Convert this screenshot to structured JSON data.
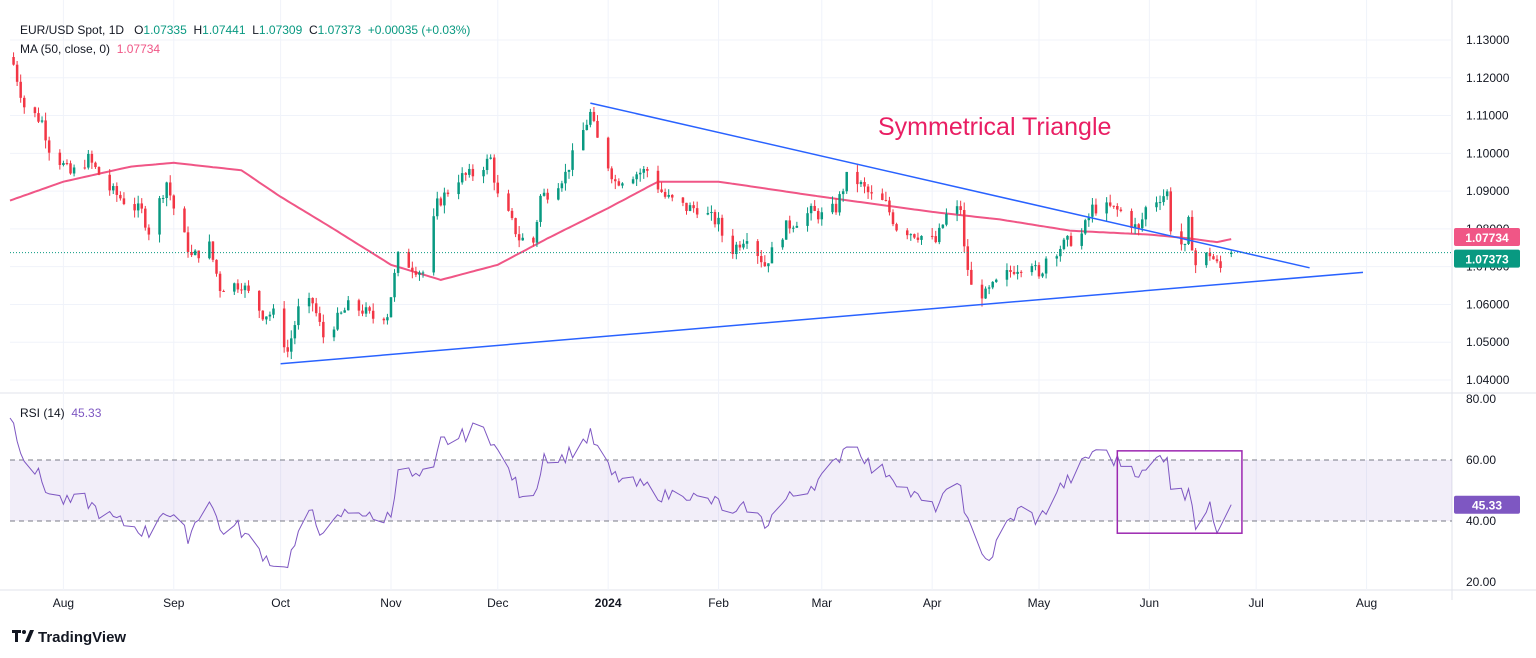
{
  "legend": {
    "symbol": "EUR/USD Spot, 1D",
    "open_label": "O",
    "open": "1.07335",
    "high_label": "H",
    "high": "1.07441",
    "low_label": "L",
    "low": "1.07309",
    "close_label": "C",
    "close": "1.07373",
    "change": "+0.00035 (+0.03%)",
    "ma_name": "MA (50, close, 0)",
    "ma_value": "1.07734",
    "rsi_name": "RSI (14)",
    "rsi_value": "45.33"
  },
  "annotation": "Symmetrical Triangle",
  "brand": "TradingView",
  "colors": {
    "up": "#089981",
    "down": "#f23645",
    "ma": "#f05686",
    "trendline": "#2962ff",
    "rsi": "#7e57c2",
    "rsi_band": "#7e57c2",
    "box": "#9c27b0",
    "price_badge": "#089981",
    "ma_badge": "#f05686"
  },
  "chart_data": [
    {
      "type": "candlestick",
      "title": "EUR/USD Spot, 1D",
      "y_ticks": [
        "1.13000",
        "1.12000",
        "1.11000",
        "1.10000",
        "1.09000",
        "1.08000",
        "1.07000",
        "1.06000",
        "1.05000",
        "1.04000"
      ],
      "ylim": [
        1.037,
        1.135
      ],
      "x_ticks": [
        "Aug",
        "Sep",
        "Oct",
        "Nov",
        "Dec",
        "2024",
        "Feb",
        "Mar",
        "Apr",
        "May",
        "Jun",
        "Jul",
        "Aug"
      ],
      "x_tick_dates": [
        "2023-08-01",
        "2023-09-01",
        "2023-10-01",
        "2023-11-01",
        "2023-12-01",
        "2024-01-01",
        "2024-02-01",
        "2024-03-01",
        "2024-04-01",
        "2024-05-01",
        "2024-06-01",
        "2024-07-01",
        "2024-08-01"
      ],
      "xlim": [
        "2023-07-17",
        "2024-08-25"
      ],
      "current_price": 1.07373,
      "ma_last": 1.07734,
      "close_anchors": [
        [
          "2023-07-18",
          1.1235
        ],
        [
          "2023-07-21",
          1.1125
        ],
        [
          "2023-07-26",
          1.1085
        ],
        [
          "2023-07-28",
          1.1015
        ],
        [
          "2023-08-03",
          1.0945
        ],
        [
          "2023-08-08",
          1.0985
        ],
        [
          "2023-08-14",
          1.0905
        ],
        [
          "2023-08-18",
          1.0875
        ],
        [
          "2023-08-23",
          1.0845
        ],
        [
          "2023-08-25",
          1.0795
        ],
        [
          "2023-08-30",
          1.0925
        ],
        [
          "2023-09-01",
          1.0855
        ],
        [
          "2023-09-06",
          1.0725
        ],
        [
          "2023-09-11",
          1.0755
        ],
        [
          "2023-09-14",
          1.0645
        ],
        [
          "2023-09-20",
          1.0655
        ],
        [
          "2023-09-26",
          1.0575
        ],
        [
          "2023-09-29",
          1.0575
        ],
        [
          "2023-10-03",
          1.0475
        ],
        [
          "2023-10-06",
          1.0585
        ],
        [
          "2023-10-10",
          1.0605
        ],
        [
          "2023-10-13",
          1.0515
        ],
        [
          "2023-10-20",
          1.0595
        ],
        [
          "2023-10-24",
          1.0585
        ],
        [
          "2023-10-27",
          1.0565
        ],
        [
          "2023-10-31",
          1.0575
        ],
        [
          "2023-11-03",
          1.0725
        ],
        [
          "2023-11-08",
          1.0695
        ],
        [
          "2023-11-10",
          1.0685
        ],
        [
          "2023-11-14",
          1.0865
        ],
        [
          "2023-11-20",
          1.0935
        ],
        [
          "2023-11-24",
          1.0945
        ],
        [
          "2023-11-29",
          1.0985
        ],
        [
          "2023-12-01",
          1.0885
        ],
        [
          "2023-12-04",
          1.0835
        ],
        [
          "2023-12-07",
          1.0775
        ],
        [
          "2023-12-11",
          1.0765
        ],
        [
          "2023-12-13",
          1.0885
        ],
        [
          "2023-12-15",
          1.0895
        ],
        [
          "2023-12-20",
          1.0945
        ],
        [
          "2023-12-27",
          1.1105
        ],
        [
          "2023-12-29",
          1.1035
        ],
        [
          "2024-01-03",
          1.0925
        ],
        [
          "2024-01-08",
          1.0945
        ],
        [
          "2024-01-12",
          1.0955
        ],
        [
          "2024-01-17",
          1.0885
        ],
        [
          "2024-01-23",
          1.0855
        ],
        [
          "2024-01-26",
          1.0855
        ],
        [
          "2024-02-01",
          1.0815
        ],
        [
          "2024-02-02",
          1.0785
        ],
        [
          "2024-02-05",
          1.0745
        ],
        [
          "2024-02-09",
          1.0785
        ],
        [
          "2024-02-14",
          1.0705
        ],
        [
          "2024-02-20",
          1.0805
        ],
        [
          "2024-02-27",
          1.0845
        ],
        [
          "2024-03-01",
          1.0835
        ],
        [
          "2024-03-05",
          1.0855
        ],
        [
          "2024-03-08",
          1.0935
        ],
        [
          "2024-03-11",
          1.0925
        ],
        [
          "2024-03-15",
          1.0885
        ],
        [
          "2024-03-19",
          1.0865
        ],
        [
          "2024-03-22",
          1.0805
        ],
        [
          "2024-03-28",
          1.0785
        ],
        [
          "2024-04-02",
          1.0765
        ],
        [
          "2024-04-05",
          1.0835
        ],
        [
          "2024-04-09",
          1.0855
        ],
        [
          "2024-04-10",
          1.0745
        ],
        [
          "2024-04-12",
          1.0645
        ],
        [
          "2024-04-16",
          1.0625
        ],
        [
          "2024-04-19",
          1.0655
        ],
        [
          "2024-04-24",
          1.0695
        ],
        [
          "2024-04-29",
          1.0715
        ],
        [
          "2024-05-01",
          1.0665
        ],
        [
          "2024-05-03",
          1.0725
        ],
        [
          "2024-05-09",
          1.0765
        ],
        [
          "2024-05-13",
          1.0785
        ],
        [
          "2024-05-16",
          1.0855
        ],
        [
          "2024-05-21",
          1.0855
        ],
        [
          "2024-05-24",
          1.0845
        ],
        [
          "2024-05-29",
          1.0795
        ],
        [
          "2024-05-31",
          1.0855
        ],
        [
          "2024-06-04",
          1.0885
        ],
        [
          "2024-06-06",
          1.0895
        ],
        [
          "2024-06-07",
          1.0805
        ],
        [
          "2024-06-11",
          1.0745
        ],
        [
          "2024-06-12",
          1.0815
        ],
        [
          "2024-06-14",
          1.0705
        ],
        [
          "2024-06-18",
          1.0735
        ],
        [
          "2024-06-20",
          1.0705
        ],
        [
          "2024-06-21",
          1.0695
        ],
        [
          "2024-06-24",
          1.0737
        ]
      ],
      "ma_curve": [
        [
          "2023-07-17",
          1.0875
        ],
        [
          "2023-08-01",
          1.0925
        ],
        [
          "2023-08-20",
          1.0965
        ],
        [
          "2023-09-01",
          1.0975
        ],
        [
          "2023-09-20",
          1.0955
        ],
        [
          "2023-10-01",
          1.0885
        ],
        [
          "2023-10-15",
          1.0805
        ],
        [
          "2023-11-01",
          1.0705
        ],
        [
          "2023-11-15",
          1.0665
        ],
        [
          "2023-12-01",
          1.0705
        ],
        [
          "2023-12-15",
          1.0775
        ],
        [
          "2024-01-01",
          1.0855
        ],
        [
          "2024-01-15",
          1.0925
        ],
        [
          "2024-02-01",
          1.0925
        ],
        [
          "2024-03-01",
          1.0885
        ],
        [
          "2024-04-01",
          1.0845
        ],
        [
          "2024-04-20",
          1.0825
        ],
        [
          "2024-05-10",
          1.0795
        ],
        [
          "2024-06-01",
          1.0785
        ],
        [
          "2024-06-12",
          1.0775
        ],
        [
          "2024-06-20",
          1.0765
        ],
        [
          "2024-06-24",
          1.0773
        ]
      ],
      "trendlines": [
        {
          "from": [
            "2023-12-27",
            1.1133
          ],
          "to": [
            "2024-07-16",
            1.0697
          ]
        },
        {
          "from": [
            "2023-10-01",
            1.0443
          ],
          "to": [
            "2024-07-31",
            1.0685
          ]
        }
      ]
    },
    {
      "type": "line",
      "title": "RSI (14)",
      "y_ticks": [
        "80.00",
        "60.00",
        "40.00",
        "20.00"
      ],
      "ylim": [
        19,
        80
      ],
      "band": [
        40,
        60
      ],
      "last": 45.33,
      "series": [
        {
          "values_by_date": [
            [
              "2023-07-17",
              75
            ],
            [
              "2023-07-21",
              61
            ],
            [
              "2023-07-25",
              55
            ],
            [
              "2023-07-28",
              49
            ],
            [
              "2023-08-02",
              46
            ],
            [
              "2023-08-07",
              47
            ],
            [
              "2023-08-11",
              43
            ],
            [
              "2023-08-16",
              40
            ],
            [
              "2023-08-21",
              38
            ],
            [
              "2023-08-25",
              36
            ],
            [
              "2023-08-29",
              44
            ],
            [
              "2023-09-01",
              40
            ],
            [
              "2023-09-05",
              35
            ],
            [
              "2023-09-11",
              48
            ],
            [
              "2023-09-14",
              37
            ],
            [
              "2023-09-19",
              38
            ],
            [
              "2023-09-22",
              34
            ],
            [
              "2023-09-27",
              28
            ],
            [
              "2023-10-02",
              24
            ],
            [
              "2023-10-05",
              32
            ],
            [
              "2023-10-10",
              44
            ],
            [
              "2023-10-13",
              34
            ],
            [
              "2023-10-18",
              42
            ],
            [
              "2023-10-23",
              44
            ],
            [
              "2023-10-27",
              40
            ],
            [
              "2023-11-01",
              42
            ],
            [
              "2023-11-03",
              58
            ],
            [
              "2023-11-08",
              54
            ],
            [
              "2023-11-13",
              56
            ],
            [
              "2023-11-15",
              66
            ],
            [
              "2023-11-20",
              67
            ],
            [
              "2023-11-24",
              70
            ],
            [
              "2023-11-28",
              70
            ],
            [
              "2023-12-01",
              62
            ],
            [
              "2023-12-05",
              55
            ],
            [
              "2023-12-08",
              46
            ],
            [
              "2023-12-12",
              52
            ],
            [
              "2023-12-14",
              62
            ],
            [
              "2023-12-18",
              60
            ],
            [
              "2023-12-22",
              63
            ],
            [
              "2023-12-27",
              68
            ],
            [
              "2024-01-02",
              55
            ],
            [
              "2024-01-08",
              52
            ],
            [
              "2024-01-12",
              51
            ],
            [
              "2024-01-17",
              48
            ],
            [
              "2024-01-22",
              50
            ],
            [
              "2024-01-26",
              47
            ],
            [
              "2024-02-01",
              46
            ],
            [
              "2024-02-05",
              41
            ],
            [
              "2024-02-09",
              45
            ],
            [
              "2024-02-14",
              39
            ],
            [
              "2024-02-20",
              47
            ],
            [
              "2024-02-26",
              51
            ],
            [
              "2024-03-01",
              54
            ],
            [
              "2024-03-05",
              59
            ],
            [
              "2024-03-08",
              66
            ],
            [
              "2024-03-12",
              63
            ],
            [
              "2024-03-15",
              57
            ],
            [
              "2024-03-20",
              56
            ],
            [
              "2024-03-26",
              49
            ],
            [
              "2024-04-01",
              44
            ],
            [
              "2024-04-05",
              48
            ],
            [
              "2024-04-09",
              54
            ],
            [
              "2024-04-10",
              41
            ],
            [
              "2024-04-15",
              31
            ],
            [
              "2024-04-17",
              27
            ],
            [
              "2024-04-22",
              39
            ],
            [
              "2024-04-26",
              44
            ],
            [
              "2024-05-01",
              40
            ],
            [
              "2024-05-06",
              50
            ],
            [
              "2024-05-10",
              54
            ],
            [
              "2024-05-15",
              61
            ],
            [
              "2024-05-17",
              64
            ],
            [
              "2024-05-22",
              60
            ],
            [
              "2024-05-27",
              58
            ],
            [
              "2024-05-30",
              55
            ],
            [
              "2024-06-04",
              61
            ],
            [
              "2024-06-06",
              62
            ],
            [
              "2024-06-07",
              52
            ],
            [
              "2024-06-11",
              48
            ],
            [
              "2024-06-12",
              53
            ],
            [
              "2024-06-14",
              39
            ],
            [
              "2024-06-18",
              44
            ],
            [
              "2024-06-20",
              38
            ],
            [
              "2024-06-21",
              40
            ],
            [
              "2024-06-24",
              45.33
            ]
          ]
        }
      ],
      "highlight_box": {
        "from": [
          "2024-05-23",
          63
        ],
        "to": [
          "2024-06-27",
          36
        ]
      }
    }
  ]
}
